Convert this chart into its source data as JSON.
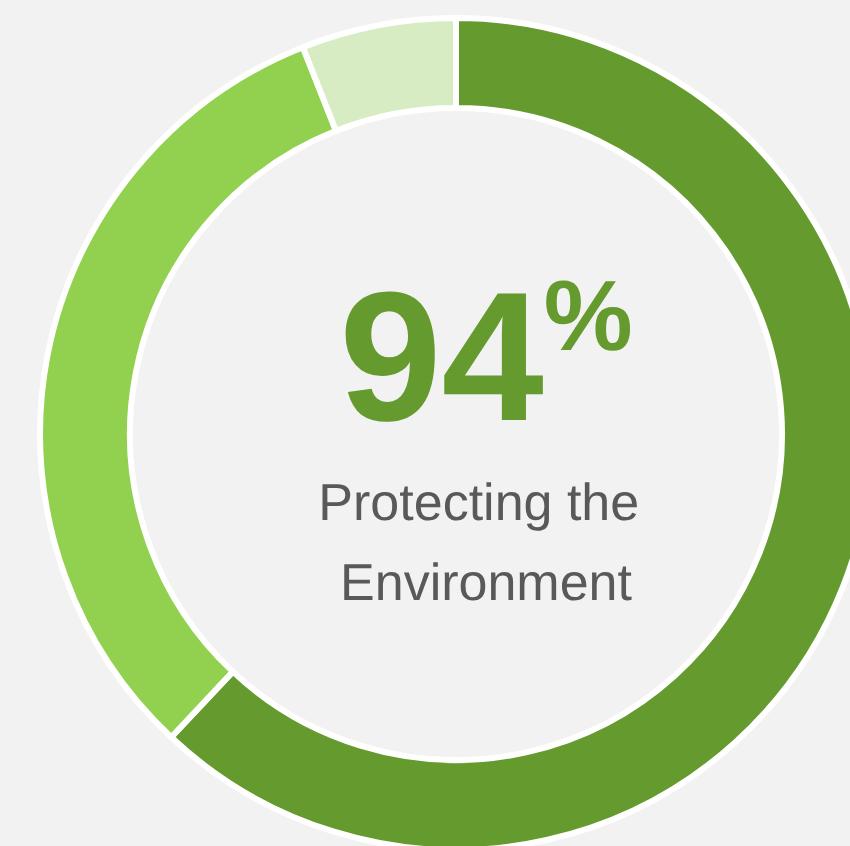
{
  "chart_data": {
    "type": "donut",
    "title": "94%",
    "subtitle": "Protecting the Environment",
    "categories": [
      null,
      null,
      null
    ],
    "values": [
      62,
      32,
      6
    ],
    "colors": [
      "#659a2e",
      "#92d050",
      "#d8ecc4"
    ]
  }
}
